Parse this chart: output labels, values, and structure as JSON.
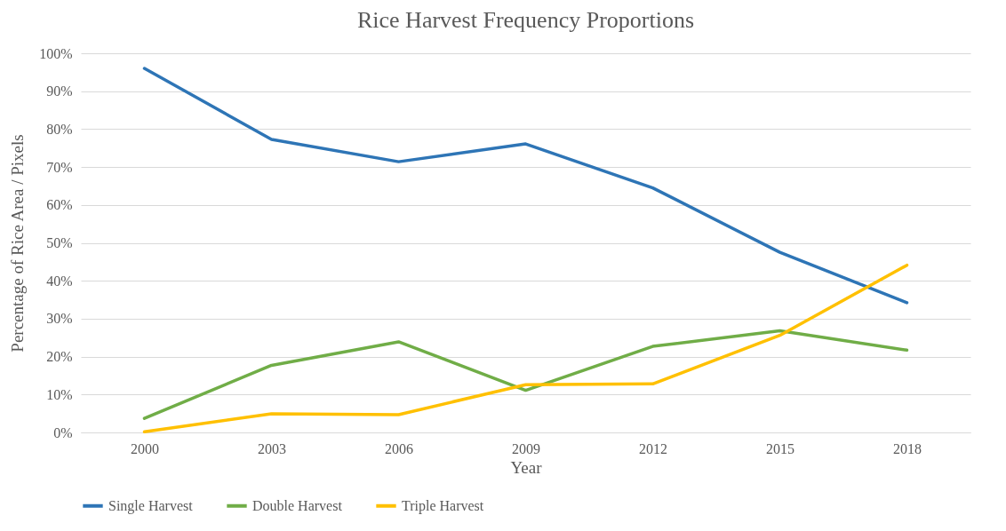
{
  "chart_data": {
    "type": "line",
    "title": "Rice Harvest Frequency Proportions",
    "xlabel": "Year",
    "ylabel": "Percentage of Rice Area / Pixels",
    "categories": [
      "2000",
      "2003",
      "2006",
      "2009",
      "2012",
      "2015",
      "2018"
    ],
    "series": [
      {
        "name": "Single Harvest",
        "color": "#2e75b6",
        "values": [
          96,
          77.3,
          71.4,
          76.1,
          64.5,
          47.5,
          34.2
        ]
      },
      {
        "name": "Double Harvest",
        "color": "#70ad47",
        "values": [
          3.7,
          17.7,
          23.9,
          11.1,
          22.7,
          26.8,
          21.7
        ]
      },
      {
        "name": "Triple Harvest",
        "color": "#ffc000",
        "values": [
          0.2,
          4.9,
          4.7,
          12.6,
          12.8,
          25.6,
          44.1
        ]
      }
    ],
    "ylim": [
      0,
      100
    ],
    "yticks": [
      {
        "value": 0,
        "label": "0%"
      },
      {
        "value": 10,
        "label": "10%"
      },
      {
        "value": 20,
        "label": "20%"
      },
      {
        "value": 30,
        "label": "30%"
      },
      {
        "value": 40,
        "label": "40%"
      },
      {
        "value": 50,
        "label": "50%"
      },
      {
        "value": 60,
        "label": "60%"
      },
      {
        "value": 70,
        "label": "70%"
      },
      {
        "value": 80,
        "label": "80%"
      },
      {
        "value": 90,
        "label": "90%"
      },
      {
        "value": 100,
        "label": "100%"
      }
    ],
    "grid": "y",
    "legend": "bottom",
    "line_style": "solid"
  }
}
